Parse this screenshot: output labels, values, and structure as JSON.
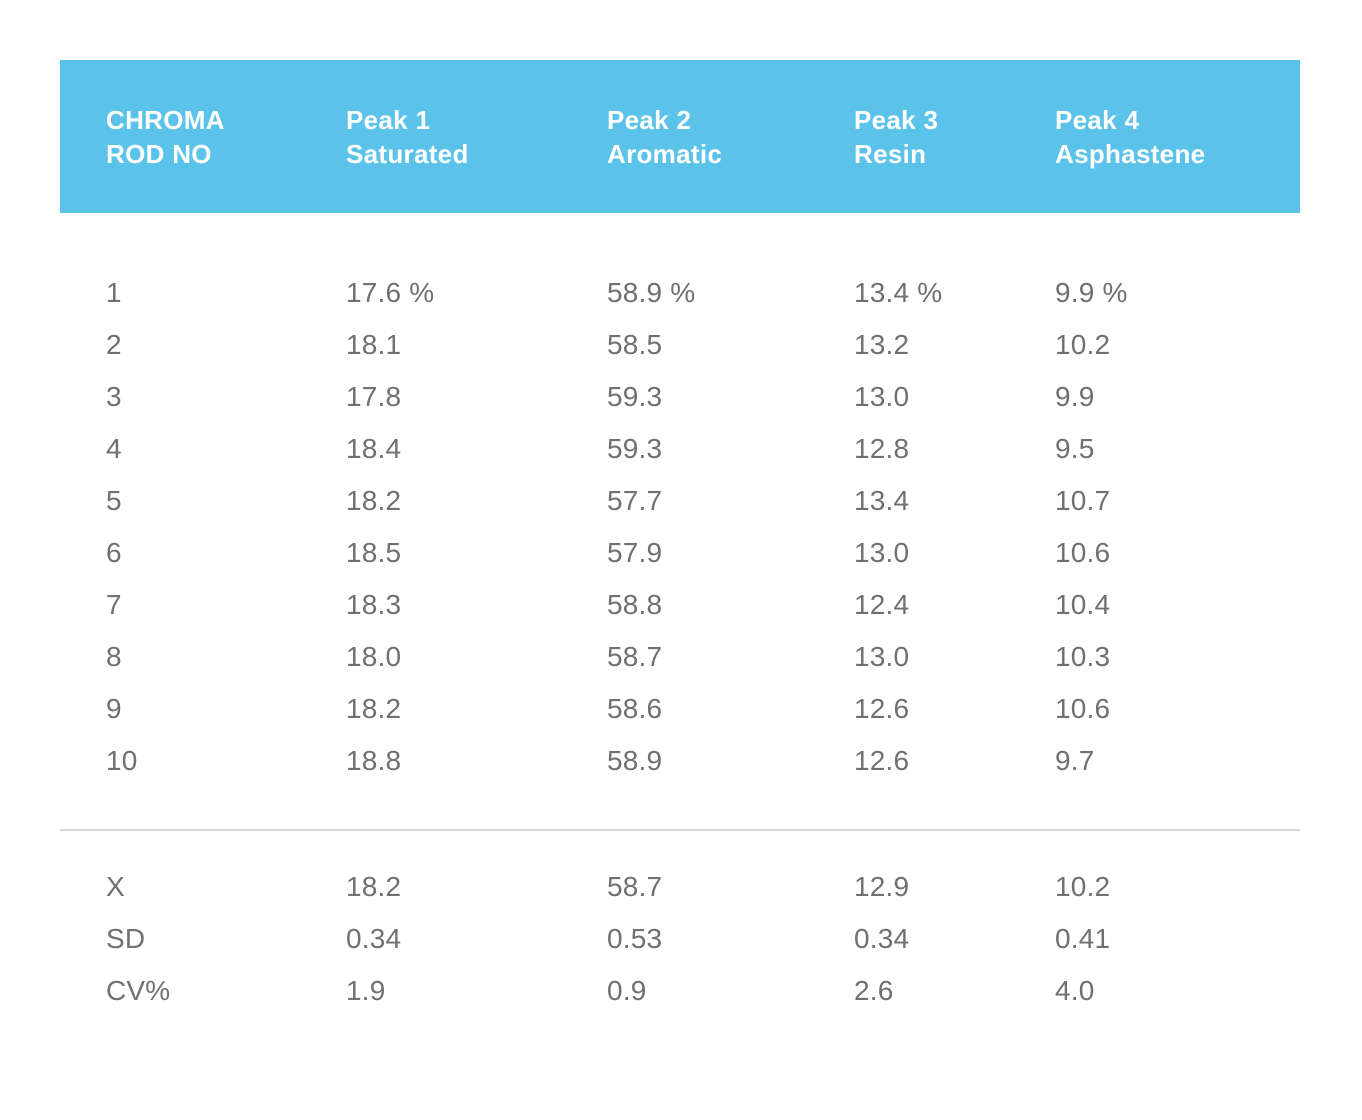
{
  "table": {
    "columns": [
      {
        "line1": "CHROMA",
        "line2": "ROD NO"
      },
      {
        "line1": "Peak 1",
        "line2": "Saturated"
      },
      {
        "line1": "Peak 2",
        "line2": "Aromatic"
      },
      {
        "line1": "Peak 3",
        "line2": "Resin"
      },
      {
        "line1": "Peak 4",
        "line2": "Asphastene"
      }
    ],
    "rows": [
      [
        "1",
        "17.6 %",
        "58.9 %",
        "13.4 %",
        "9.9 %"
      ],
      [
        "2",
        "18.1",
        "58.5",
        "13.2",
        "10.2"
      ],
      [
        "3",
        "17.8",
        "59.3",
        "13.0",
        "9.9"
      ],
      [
        "4",
        "18.4",
        "59.3",
        "12.8",
        "9.5"
      ],
      [
        "5",
        "18.2",
        "57.7",
        "13.4",
        "10.7"
      ],
      [
        "6",
        "18.5",
        "57.9",
        "13.0",
        "10.6"
      ],
      [
        "7",
        "18.3",
        "58.8",
        "12.4",
        "10.4"
      ],
      [
        "8",
        "18.0",
        "58.7",
        "13.0",
        "10.3"
      ],
      [
        "9",
        "18.2",
        "58.6",
        "12.6",
        "10.6"
      ],
      [
        "10",
        "18.8",
        "58.9",
        "12.6",
        "9.7"
      ]
    ],
    "summary": [
      [
        "X",
        "18.2",
        "58.7",
        "12.9",
        "10.2"
      ],
      [
        "SD",
        "0.34",
        "0.53",
        "0.34",
        "0.41"
      ],
      [
        "CV%",
        "1.9",
        "0.9",
        "2.6",
        "4.0"
      ]
    ],
    "colors": {
      "header_bg": "#5bc3ea",
      "header_text": "#ffffff",
      "body_text": "#707070",
      "divider": "#d6d6d6",
      "card_bg": "#ffffff"
    }
  }
}
